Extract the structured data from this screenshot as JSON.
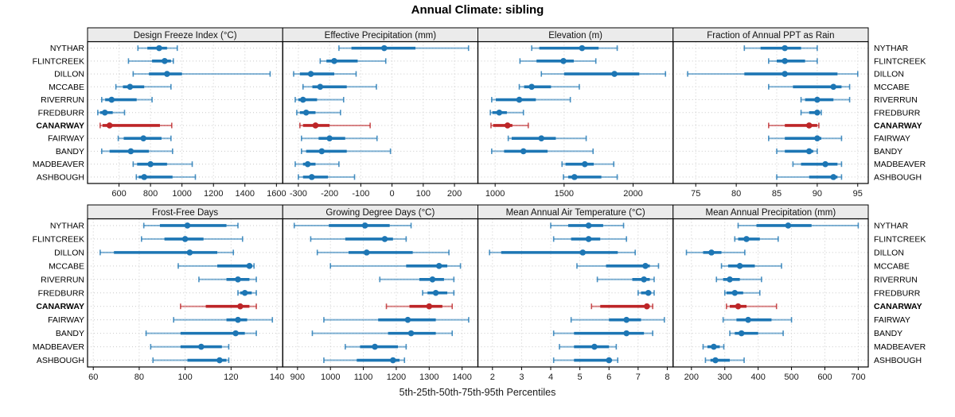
{
  "title": "Annual Climate: sibling",
  "footer": "5th-25th-50th-75th-95th Percentiles",
  "highlight_station": "CANARWAY",
  "stations": [
    "NYTHAR",
    "FLINTCREEK",
    "DILLON",
    "MCCABE",
    "RIVERRUN",
    "FREDBURR",
    "CANARWAY",
    "FAIRWAY",
    "BANDY",
    "MADBEAVER",
    "ASHBOUGH"
  ],
  "colors": {
    "normal": "#1d76b4",
    "highlight": "#bd2527",
    "header_bg": "#ebebeb",
    "grid": "#c9c9c9",
    "border": "#000000",
    "tick_text": "#1a1a1a"
  },
  "chart_data": {
    "type": "multi-panel-dotplot",
    "percentiles": [
      5,
      25,
      50,
      75,
      95
    ],
    "layout": {
      "rows": 2,
      "cols": 4
    },
    "legend_note": "whisker = 5th-95th, thick bar = 25th-75th, dot = 50th percentile",
    "panels": [
      {
        "title": "Design Freeze Index (°C)",
        "xlim": [
          400,
          1640
        ],
        "ticks": [
          600,
          800,
          1000,
          1200,
          1400,
          1600
        ],
        "values": {
          "NYTHAR": [
            720,
            780,
            855,
            905,
            970
          ],
          "FLINTCREEK": [
            660,
            810,
            890,
            930,
            945
          ],
          "DILLON": [
            690,
            790,
            905,
            1000,
            1560
          ],
          "MCCABE": [
            580,
            625,
            670,
            760,
            930
          ],
          "RIVERRUN": [
            490,
            512,
            553,
            712,
            810
          ],
          "FREDBURR": [
            465,
            480,
            510,
            560,
            635
          ],
          "CANARWAY": [
            480,
            495,
            540,
            860,
            935
          ],
          "FAIRWAY": [
            595,
            630,
            755,
            870,
            930
          ],
          "BANDY": [
            490,
            540,
            675,
            790,
            940
          ],
          "MADBEAVER": [
            690,
            715,
            800,
            905,
            1065
          ],
          "ASHBOUGH": [
            710,
            725,
            760,
            940,
            1085
          ]
        }
      },
      {
        "title": "Effective Precipitation (mm)",
        "xlim": [
          -350,
          275
        ],
        "ticks": [
          -300,
          -200,
          -100,
          0,
          100,
          200
        ],
        "values": {
          "NYTHAR": [
            -170,
            -130,
            -25,
            75,
            245
          ],
          "FLINTCREEK": [
            -230,
            -210,
            -185,
            -110,
            -20
          ],
          "DILLON": [
            -315,
            -295,
            -260,
            -185,
            -115
          ],
          "MCCABE": [
            -285,
            -255,
            -230,
            -145,
            -50
          ],
          "RIVERRUN": [
            -310,
            -300,
            -285,
            -240,
            -155
          ],
          "FREDBURR": [
            -305,
            -295,
            -275,
            -245,
            -165
          ],
          "CANARWAY": [
            -295,
            -285,
            -245,
            -200,
            -70
          ],
          "FAIRWAY": [
            -290,
            -235,
            -200,
            -150,
            -48
          ],
          "BANDY": [
            -290,
            -275,
            -225,
            -145,
            -5
          ],
          "MADBEAVER": [
            -310,
            -285,
            -270,
            -245,
            -170
          ],
          "ASHBOUGH": [
            -300,
            -285,
            -257,
            -205,
            -120
          ]
        }
      },
      {
        "title": "Elevation (m)",
        "xlim": [
          875,
          2290
        ],
        "ticks": [
          1000,
          1500,
          2000
        ],
        "values": {
          "NYTHAR": [
            1265,
            1320,
            1630,
            1750,
            1885
          ],
          "FLINTCREEK": [
            1180,
            1300,
            1495,
            1570,
            1730
          ],
          "DILLON": [
            1335,
            1500,
            1865,
            2045,
            2235
          ],
          "MCCABE": [
            1175,
            1210,
            1265,
            1405,
            1610
          ],
          "RIVERRUN": [
            975,
            1005,
            1175,
            1295,
            1545
          ],
          "FREDBURR": [
            965,
            980,
            1030,
            1085,
            1205
          ],
          "CANARWAY": [
            970,
            985,
            1090,
            1125,
            1240
          ],
          "FAIRWAY": [
            1095,
            1120,
            1335,
            1440,
            1660
          ],
          "BANDY": [
            975,
            1065,
            1205,
            1380,
            1710
          ],
          "MADBEAVER": [
            1485,
            1510,
            1650,
            1715,
            1860
          ],
          "ASHBOUGH": [
            1495,
            1530,
            1575,
            1770,
            1885
          ]
        }
      },
      {
        "title": "Fraction of Annual PPT as Rain",
        "xlim": [
          72.2,
          96.3
        ],
        "ticks": [
          75,
          80,
          85,
          90,
          95
        ],
        "values": {
          "NYTHAR": [
            81,
            83,
            86,
            88,
            90
          ],
          "FLINTCREEK": [
            84,
            85,
            86,
            88.5,
            90
          ],
          "DILLON": [
            74,
            81,
            86,
            92.5,
            95
          ],
          "MCCABE": [
            84,
            87,
            92,
            93,
            94
          ],
          "RIVERRUN": [
            88,
            88.5,
            90,
            92,
            94
          ],
          "FREDBURR": [
            88,
            89,
            90,
            90.2,
            90.5
          ],
          "CANARWAY": [
            84,
            86,
            89,
            90,
            90.2
          ],
          "FAIRWAY": [
            84,
            86,
            90,
            90.5,
            93
          ],
          "BANDY": [
            85,
            86,
            89,
            89.5,
            90
          ],
          "MADBEAVER": [
            87,
            88,
            91,
            92.5,
            93
          ],
          "ASHBOUGH": [
            85,
            89,
            92,
            92.5,
            93
          ]
        }
      },
      {
        "title": "Frost-Free Days",
        "xlim": [
          57.5,
          142.5
        ],
        "ticks": [
          60,
          80,
          100,
          120,
          140
        ],
        "values": {
          "NYTHAR": [
            82,
            89,
            101,
            118,
            123
          ],
          "FLINTCREEK": [
            81,
            91,
            100,
            108,
            125
          ],
          "DILLON": [
            63,
            69,
            102,
            114,
            121
          ],
          "MCCABE": [
            97,
            114,
            128,
            129,
            130
          ],
          "RIVERRUN": [
            106,
            118,
            123,
            128,
            131
          ],
          "FREDBURR": [
            123,
            124,
            126,
            129,
            131
          ],
          "CANARWAY": [
            98,
            109,
            124,
            128,
            131
          ],
          "FAIRWAY": [
            95,
            118,
            123,
            127,
            138
          ],
          "BANDY": [
            83,
            98,
            122,
            126,
            131
          ],
          "MADBEAVER": [
            85,
            98,
            107,
            116,
            119
          ],
          "ASHBOUGH": [
            86,
            101,
            115,
            118,
            119
          ]
        }
      },
      {
        "title": "Growing Degree Days (°C)",
        "xlim": [
          855,
          1448
        ],
        "ticks": [
          900,
          1000,
          1100,
          1200,
          1300,
          1400
        ],
        "values": {
          "NYTHAR": [
            890,
            995,
            1105,
            1180,
            1245
          ],
          "FLINTCREEK": [
            940,
            1045,
            1165,
            1190,
            1230
          ],
          "DILLON": [
            960,
            1055,
            1110,
            1250,
            1360
          ],
          "MCCABE": [
            1000,
            1230,
            1330,
            1355,
            1395
          ],
          "RIVERRUN": [
            1150,
            1270,
            1310,
            1345,
            1375
          ],
          "FREDBURR": [
            1280,
            1295,
            1320,
            1355,
            1375
          ],
          "CANARWAY": [
            1170,
            1240,
            1300,
            1340,
            1370
          ],
          "FAIRWAY": [
            980,
            1145,
            1235,
            1320,
            1420
          ],
          "BANDY": [
            945,
            1175,
            1245,
            1320,
            1370
          ],
          "MADBEAVER": [
            1045,
            1090,
            1135,
            1205,
            1230
          ],
          "ASHBOUGH": [
            980,
            1080,
            1190,
            1210,
            1225
          ]
        }
      },
      {
        "title": "Mean Annual Air Temperature (°C)",
        "xlim": [
          1.5,
          8.2
        ],
        "ticks": [
          2,
          3,
          4,
          5,
          6,
          7,
          8
        ],
        "values": {
          "NYTHAR": [
            4.0,
            4.6,
            5.3,
            5.8,
            6.5
          ],
          "FLINTCREEK": [
            4.1,
            4.7,
            5.3,
            5.7,
            6.6
          ],
          "DILLON": [
            1.9,
            2.3,
            5.1,
            6.3,
            6.9
          ],
          "MCCABE": [
            4.9,
            5.9,
            7.25,
            7.4,
            7.7
          ],
          "RIVERRUN": [
            5.6,
            6.8,
            7.2,
            7.4,
            7.55
          ],
          "FREDBURR": [
            7.0,
            7.1,
            7.35,
            7.45,
            7.55
          ],
          "CANARWAY": [
            5.4,
            5.7,
            7.3,
            7.4,
            7.5
          ],
          "FAIRWAY": [
            4.7,
            6.0,
            6.6,
            7.1,
            7.9
          ],
          "BANDY": [
            4.1,
            4.8,
            6.6,
            7.2,
            7.5
          ],
          "MADBEAVER": [
            4.3,
            4.8,
            5.5,
            6.0,
            6.25
          ],
          "ASHBOUGH": [
            4.1,
            4.8,
            6.0,
            6.1,
            6.3
          ]
        }
      },
      {
        "title": "Mean Annual Precipitation (mm)",
        "xlim": [
          145,
          730
        ],
        "ticks": [
          200,
          300,
          400,
          500,
          600,
          700
        ],
        "values": {
          "NYTHAR": [
            340,
            395,
            490,
            560,
            700
          ],
          "FLINTCREEK": [
            330,
            340,
            365,
            405,
            460
          ],
          "DILLON": [
            185,
            235,
            260,
            290,
            360
          ],
          "MCCABE": [
            290,
            310,
            345,
            390,
            470
          ],
          "RIVERRUN": [
            275,
            295,
            315,
            345,
            410
          ],
          "FREDBURR": [
            300,
            305,
            330,
            355,
            405
          ],
          "CANARWAY": [
            305,
            315,
            340,
            365,
            455
          ],
          "FAIRWAY": [
            295,
            335,
            370,
            440,
            500
          ],
          "BANDY": [
            315,
            330,
            350,
            400,
            475
          ],
          "MADBEAVER": [
            235,
            248,
            267,
            285,
            297
          ],
          "ASHBOUGH": [
            242,
            257,
            272,
            315,
            358
          ]
        }
      }
    ]
  }
}
